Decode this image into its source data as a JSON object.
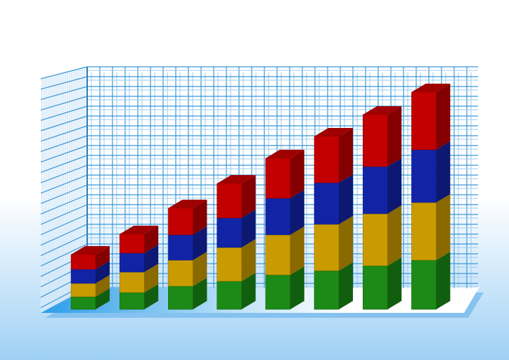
{
  "chart_data": {
    "type": "bar",
    "stacked": true,
    "three_d": true,
    "title": "",
    "xlabel": "",
    "ylabel": "",
    "grid": true,
    "legend": "none",
    "categories": [
      "",
      "",
      "",
      "",
      "",
      "",
      "",
      ""
    ],
    "series": [
      {
        "color": "#1b8a16",
        "values": [
          18,
          24,
          33,
          40,
          49,
          55,
          62,
          70
        ]
      },
      {
        "color": "#c99b00",
        "values": [
          19,
          29,
          37,
          48,
          57,
          66,
          74,
          82
        ]
      },
      {
        "color": "#1224a6",
        "values": [
          20,
          27,
          36,
          42,
          52,
          59,
          67,
          75
        ]
      },
      {
        "color": "#c20000",
        "values": [
          21,
          27,
          38,
          49,
          57,
          66,
          74,
          82
        ]
      }
    ],
    "ylim": [
      0,
      320
    ]
  },
  "colors": {
    "grid": "#3a96d6",
    "floor_left": "#2a9de8",
    "background_bottom": "#9fd0f5"
  }
}
